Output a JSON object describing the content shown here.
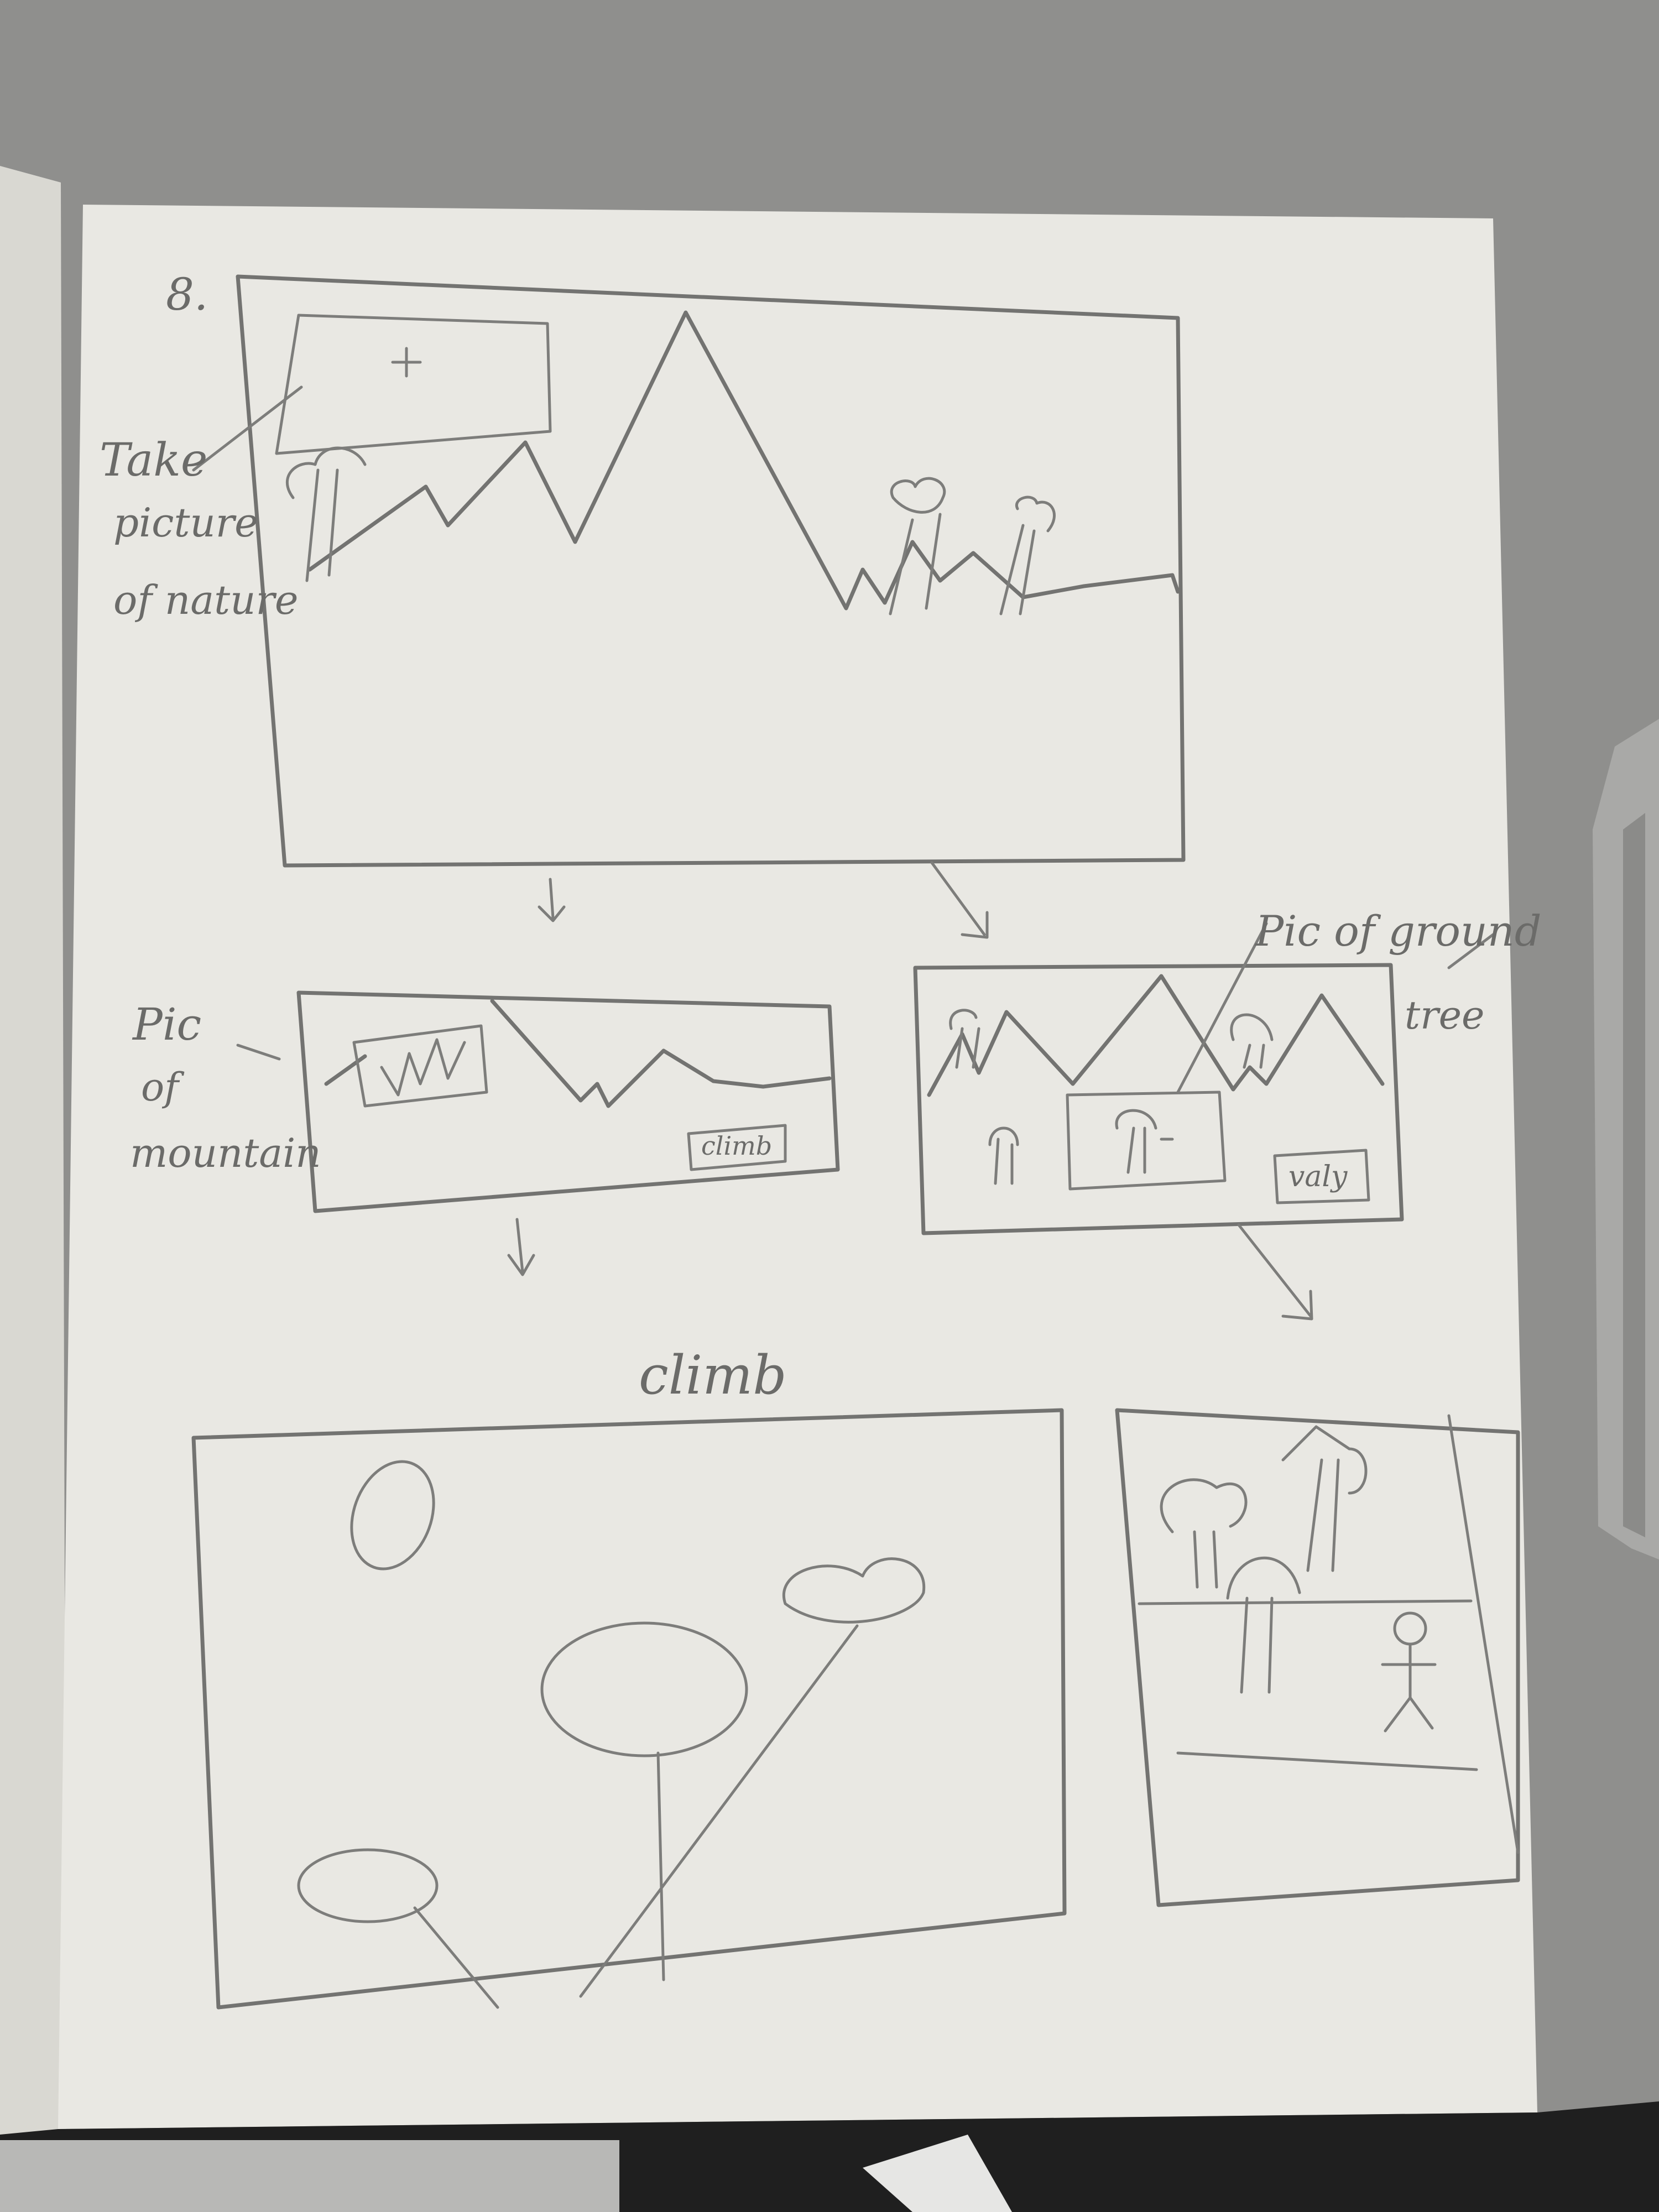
{
  "sketch": {
    "page_number": "8.",
    "annotations": {
      "take_picture": [
        "Take",
        "picture",
        "of nature"
      ],
      "pic_of_mountain": [
        "Pic",
        "of",
        "mountain"
      ],
      "pic_of_ground_tree": [
        "Pic of ground",
        "tree"
      ],
      "climb_heading": "climb"
    },
    "buttons": {
      "climb": "climb",
      "valley": "valy"
    }
  },
  "colors": {
    "desk": "#8f8f8d",
    "paper": "#e9e8e3",
    "pencil": "#737371"
  }
}
